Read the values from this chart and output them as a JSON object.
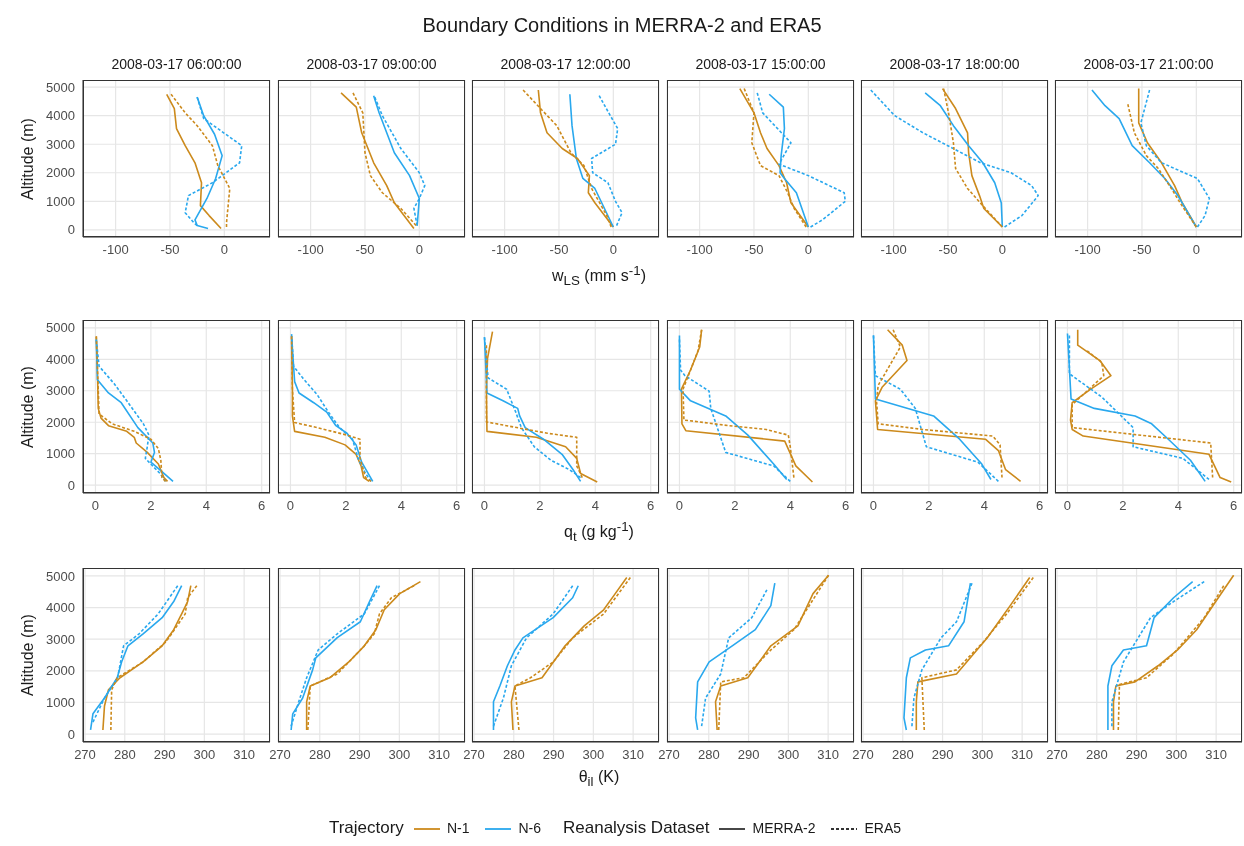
{
  "chart_data": [
    {
      "type": "line",
      "title": "2008-03-17 06:00:00",
      "ylabel": "Altitude (m)",
      "xlim": [
        -130,
        42
      ],
      "xticks": [
        -100,
        -50,
        0
      ],
      "ylim": [
        -250,
        5250
      ],
      "yticks": [
        0,
        1000,
        2000,
        3000,
        4000,
        5000
      ],
      "grid": true,
      "series": [
        {
          "color": "#cc8a1c",
          "line_style": "solid",
          "x": [
            -53,
            -46,
            -44,
            -36,
            -27,
            -21,
            -22,
            -14,
            -3
          ],
          "values": [
            4750,
            4250,
            3550,
            2950,
            2350,
            1650,
            850,
            500,
            50
          ]
        },
        {
          "color": "#cc8a1c",
          "line_style": "dashed",
          "x": [
            -49,
            -36,
            -25,
            -11,
            -6,
            5,
            2,
            2
          ],
          "values": [
            4750,
            4100,
            3650,
            2950,
            2250,
            1450,
            250,
            100
          ]
        },
        {
          "color": "#29a8ee",
          "line_style": "solid",
          "x": [
            -25,
            -19,
            -9,
            -2,
            -8,
            -16,
            -27,
            -25,
            -15
          ],
          "values": [
            4650,
            4000,
            3350,
            2600,
            1800,
            1100,
            350,
            150,
            50
          ]
        },
        {
          "color": "#29a8ee",
          "line_style": "dashed",
          "x": [
            -25,
            -19,
            16,
            14,
            -11,
            -33,
            -36,
            -28,
            -25
          ],
          "values": [
            4650,
            3900,
            2950,
            2350,
            1650,
            1200,
            600,
            250,
            150
          ]
        }
      ]
    },
    {
      "type": "line",
      "title": "2008-03-17 09:00:00",
      "xlim": [
        -130,
        42
      ],
      "xticks": [
        -100,
        -50,
        0
      ],
      "ylim": [
        -250,
        5250
      ],
      "yticks": [
        0,
        1000,
        2000,
        3000,
        4000,
        5000
      ],
      "grid": true,
      "tick_labels": "x",
      "series": [
        {
          "color": "#cc8a1c",
          "line_style": "solid",
          "x": [
            -72,
            -58,
            -53,
            -42,
            -30,
            -23,
            -5
          ],
          "values": [
            4800,
            4300,
            3400,
            2350,
            1550,
            950,
            50
          ]
        },
        {
          "color": "#cc8a1c",
          "line_style": "dashed",
          "x": [
            -61,
            -52,
            -50,
            -45,
            -34,
            -17,
            -3
          ],
          "values": [
            4800,
            4100,
            2700,
            1900,
            1300,
            750,
            150
          ]
        },
        {
          "color": "#29a8ee",
          "line_style": "solid",
          "x": [
            -42,
            -37,
            -23,
            -9,
            0,
            -2
          ],
          "values": [
            4700,
            4100,
            2700,
            1900,
            1100,
            150
          ]
        },
        {
          "color": "#29a8ee",
          "line_style": "dashed",
          "x": [
            -41,
            -34,
            -17,
            0,
            5,
            0,
            -5,
            -2
          ],
          "values": [
            4650,
            4000,
            2850,
            2000,
            1550,
            1100,
            750,
            150
          ]
        }
      ]
    },
    {
      "type": "line",
      "title": "2008-03-17 12:00:00",
      "xlabel": "w$_{LS}$ (mm s$^{-1}$)",
      "xlim": [
        -130,
        42
      ],
      "xticks": [
        -100,
        -50,
        0
      ],
      "ylim": [
        -250,
        5250
      ],
      "yticks": [
        0,
        1000,
        2000,
        3000,
        4000,
        5000
      ],
      "grid": true,
      "tick_labels": "x",
      "series": [
        {
          "color": "#cc8a1c",
          "line_style": "solid",
          "x": [
            -69,
            -67,
            -61,
            -47,
            -33,
            -22,
            -23,
            -17,
            0
          ],
          "values": [
            4900,
            4100,
            3400,
            2850,
            2500,
            1900,
            1300,
            950,
            100
          ]
        },
        {
          "color": "#cc8a1c",
          "line_style": "dashed",
          "x": [
            -83,
            -67,
            -52,
            -39,
            -27,
            -20,
            -6,
            -2
          ],
          "values": [
            4900,
            4250,
            3650,
            2700,
            2250,
            1450,
            500,
            100
          ]
        },
        {
          "color": "#29a8ee",
          "line_style": "solid",
          "x": [
            -40,
            -38,
            -34,
            -28,
            -17,
            0
          ],
          "values": [
            4750,
            3650,
            2500,
            1800,
            1450,
            100
          ]
        },
        {
          "color": "#29a8ee",
          "line_style": "dashed",
          "x": [
            -13,
            -5,
            4,
            2,
            -20,
            -19,
            -5,
            2,
            8,
            3
          ],
          "values": [
            4700,
            4150,
            3550,
            3000,
            2500,
            2000,
            1650,
            1000,
            600,
            150
          ]
        }
      ]
    },
    {
      "type": "line",
      "title": "2008-03-17 15:00:00",
      "xlim": [
        -130,
        42
      ],
      "xticks": [
        -100,
        -50,
        0
      ],
      "ylim": [
        -250,
        5250
      ],
      "yticks": [
        0,
        1000,
        2000,
        3000,
        4000,
        5000
      ],
      "grid": true,
      "tick_labels": "x",
      "series": [
        {
          "color": "#cc8a1c",
          "line_style": "solid",
          "x": [
            -63,
            -50,
            -44,
            -38,
            -27,
            -20,
            -16,
            0
          ],
          "values": [
            4950,
            4100,
            3400,
            2850,
            2250,
            1650,
            950,
            100
          ]
        },
        {
          "color": "#cc8a1c",
          "line_style": "dashed",
          "x": [
            -59,
            -50,
            -52,
            -44,
            -27,
            -19,
            -13,
            -2
          ],
          "values": [
            4950,
            4100,
            3050,
            2250,
            1900,
            1300,
            750,
            100
          ]
        },
        {
          "color": "#29a8ee",
          "line_style": "solid",
          "x": [
            -36,
            -23,
            -22,
            -25,
            -26,
            -22,
            -11,
            0
          ],
          "values": [
            4750,
            4300,
            3550,
            2600,
            2000,
            1800,
            1300,
            100
          ]
        },
        {
          "color": "#29a8ee",
          "line_style": "dashed",
          "x": [
            -47,
            -42,
            -16,
            -27,
            0,
            33,
            34,
            13,
            2
          ],
          "values": [
            4800,
            4100,
            3050,
            2300,
            1900,
            1300,
            1000,
            350,
            100
          ]
        }
      ]
    },
    {
      "type": "line",
      "title": "2008-03-17 18:00:00",
      "xlim": [
        -130,
        42
      ],
      "xticks": [
        -100,
        -50,
        0
      ],
      "ylim": [
        -250,
        5250
      ],
      "yticks": [
        0,
        1000,
        2000,
        3000,
        4000,
        5000
      ],
      "grid": true,
      "tick_labels": "x",
      "series": [
        {
          "color": "#cc8a1c",
          "line_style": "solid",
          "x": [
            -55,
            -43,
            -32,
            -31,
            -28,
            -21,
            -17,
            0
          ],
          "values": [
            4950,
            4250,
            3400,
            2700,
            1900,
            1200,
            750,
            100
          ]
        },
        {
          "color": "#cc8a1c",
          "line_style": "dashed",
          "x": [
            -54,
            -49,
            -45,
            -43,
            -32,
            -18,
            0
          ],
          "values": [
            4950,
            4000,
            3050,
            2150,
            1450,
            850,
            100
          ]
        },
        {
          "color": "#29a8ee",
          "line_style": "solid",
          "x": [
            -71,
            -57,
            -45,
            -31,
            -18,
            -7,
            -1,
            0
          ],
          "values": [
            4800,
            4350,
            3650,
            2950,
            2350,
            1650,
            950,
            100
          ]
        },
        {
          "color": "#29a8ee",
          "line_style": "dashed",
          "x": [
            -121,
            -99,
            -73,
            -20,
            8,
            27,
            33,
            18,
            2
          ],
          "values": [
            4900,
            4000,
            3400,
            2350,
            2000,
            1550,
            1200,
            500,
            100
          ]
        }
      ]
    },
    {
      "type": "line",
      "title": "2008-03-17 21:00:00",
      "xlim": [
        -130,
        42
      ],
      "xticks": [
        -100,
        -50,
        0
      ],
      "ylim": [
        -250,
        5250
      ],
      "yticks": [
        0,
        1000,
        2000,
        3000,
        4000,
        5000
      ],
      "grid": true,
      "tick_labels": "x",
      "series": [
        {
          "color": "#cc8a1c",
          "line_style": "solid",
          "x": [
            -53,
            -53,
            -45,
            -32,
            -20,
            -13,
            0
          ],
          "values": [
            4950,
            3750,
            3050,
            2350,
            1550,
            950,
            100
          ]
        },
        {
          "color": "#cc8a1c",
          "line_style": "dashed",
          "x": [
            -63,
            -57,
            -46,
            -35,
            -23,
            -15,
            0
          ],
          "values": [
            4400,
            3400,
            2600,
            2150,
            1450,
            950,
            100
          ]
        },
        {
          "color": "#29a8ee",
          "line_style": "solid",
          "x": [
            -96,
            -84,
            -71,
            -59,
            -43,
            -29,
            -17,
            0
          ],
          "values": [
            4900,
            4350,
            3900,
            2950,
            2350,
            1800,
            1200,
            100
          ]
        },
        {
          "color": "#29a8ee",
          "line_style": "dashed",
          "x": [
            -43,
            -51,
            -46,
            -32,
            1,
            12,
            8,
            1
          ],
          "values": [
            4900,
            3750,
            2950,
            2350,
            1800,
            1100,
            500,
            100
          ]
        }
      ]
    },
    {
      "type": "line",
      "ylabel": "Altitude (m)",
      "xlim": [
        -0.45,
        6.3
      ],
      "xticks": [
        0,
        2,
        4,
        6
      ],
      "ylim": [
        -250,
        5250
      ],
      "yticks": [
        0,
        1000,
        2000,
        3000,
        4000,
        5000
      ],
      "grid": true,
      "series": [
        {
          "color": "#cc8a1c",
          "line_style": "solid",
          "x": [
            0.03,
            0.07,
            0.1,
            0.2,
            0.47,
            1.13,
            1.4,
            1.47,
            1.87,
            2.27,
            2.47,
            2.6
          ],
          "values": [
            4730,
            3660,
            2440,
            2130,
            1890,
            1710,
            1520,
            1340,
            1040,
            670,
            240,
            120
          ]
        },
        {
          "color": "#cc8a1c",
          "line_style": "dashed",
          "x": [
            0.03,
            0.1,
            0.13,
            0.6,
            1.4,
            2,
            2.27,
            2.36,
            2.4,
            2.53
          ],
          "values": [
            4730,
            3050,
            2260,
            1950,
            1710,
            1460,
            1160,
            790,
            240,
            120
          ]
        },
        {
          "color": "#29a8ee",
          "line_style": "solid",
          "x": [
            0.03,
            0.07,
            0.47,
            0.93,
            1.53,
            2.07,
            2.13,
            2,
            2.4,
            2.8
          ],
          "values": [
            4630,
            3350,
            2930,
            2620,
            1830,
            1340,
            1040,
            730,
            430,
            120
          ]
        },
        {
          "color": "#29a8ee",
          "line_style": "dashed",
          "x": [
            0.03,
            0.13,
            0.67,
            1.13,
            1.73,
            1.93,
            1.87,
            1.8,
            2.33,
            2.53
          ],
          "values": [
            4630,
            3780,
            3230,
            2680,
            1950,
            1590,
            1220,
            850,
            370,
            120
          ]
        }
      ]
    },
    {
      "type": "line",
      "xlim": [
        -0.45,
        6.3
      ],
      "xticks": [
        0,
        2,
        4,
        6
      ],
      "ylim": [
        -250,
        5250
      ],
      "yticks": [
        0,
        1000,
        2000,
        3000,
        4000,
        5000
      ],
      "grid": true,
      "tick_labels": "x",
      "series": [
        {
          "color": "#cc8a1c",
          "line_style": "solid",
          "x": [
            0.04,
            0.07,
            0.07,
            0.15,
            1.24,
            1.97,
            2.37,
            2.55,
            2.64,
            2.84
          ],
          "values": [
            4730,
            3050,
            2200,
            1710,
            1520,
            1280,
            980,
            610,
            240,
            120
          ]
        },
        {
          "color": "#cc8a1c",
          "line_style": "dashed",
          "x": [
            0.04,
            0.07,
            0.15,
            0.97,
            2.04,
            2.51,
            2.51,
            2.71,
            2.91
          ],
          "values": [
            4730,
            3050,
            1990,
            1830,
            1590,
            1460,
            850,
            240,
            120
          ]
        },
        {
          "color": "#29a8ee",
          "line_style": "solid",
          "x": [
            0.04,
            0.15,
            0.31,
            0.84,
            1.31,
            1.64,
            2.04,
            2.37,
            2.57,
            2.97
          ],
          "values": [
            4730,
            3290,
            2930,
            2620,
            2320,
            1890,
            1650,
            1280,
            730,
            120
          ]
        },
        {
          "color": "#29a8ee",
          "line_style": "dashed",
          "x": [
            0.04,
            0.11,
            0.44,
            0.97,
            1.37,
            1.77,
            2.24,
            2.44,
            2.71,
            2.91
          ],
          "values": [
            4800,
            3780,
            3410,
            2870,
            2320,
            1830,
            1460,
            850,
            370,
            120
          ]
        }
      ]
    },
    {
      "type": "line",
      "xlabel": "q$_{t}$ (g kg$^{-1}$)",
      "xlim": [
        -0.45,
        6.3
      ],
      "xticks": [
        0,
        2,
        4,
        6
      ],
      "ylim": [
        -250,
        5250
      ],
      "yticks": [
        0,
        1000,
        2000,
        3000,
        4000,
        5000
      ],
      "grid": true,
      "tick_labels": "x",
      "series": [
        {
          "color": "#cc8a1c",
          "line_style": "solid",
          "x": [
            0.29,
            0.11,
            0.07,
            0.09,
            1.87,
            2.93,
            3.33,
            3.47,
            4.07
          ],
          "values": [
            4880,
            4020,
            3050,
            1710,
            1520,
            1220,
            850,
            370,
            100
          ]
        },
        {
          "color": "#cc8a1c",
          "line_style": "dashed",
          "x": [
            0.07,
            0.07,
            0.8,
            2.27,
            3.33,
            3.33,
            3.53
          ],
          "values": [
            4450,
            2010,
            1890,
            1650,
            1520,
            610,
            240
          ]
        },
        {
          "color": "#29a8ee",
          "line_style": "solid",
          "x": [
            0,
            0.09,
            0.67,
            1.2,
            1.27,
            1.47,
            2.13,
            2.8,
            3.2,
            3.47
          ],
          "values": [
            4700,
            2930,
            2680,
            2440,
            2200,
            1830,
            1460,
            980,
            490,
            120
          ]
        },
        {
          "color": "#29a8ee",
          "line_style": "dashed",
          "x": [
            0,
            0.13,
            0.8,
            1.13,
            1.33,
            1.8,
            2.4,
            3.07,
            3.47
          ],
          "values": [
            4700,
            3410,
            3050,
            2320,
            1830,
            1220,
            790,
            490,
            240
          ]
        }
      ]
    },
    {
      "type": "line",
      "xlim": [
        -0.45,
        6.3
      ],
      "xticks": [
        0,
        2,
        4,
        6
      ],
      "ylim": [
        -250,
        5250
      ],
      "yticks": [
        0,
        1000,
        2000,
        3000,
        4000,
        5000
      ],
      "grid": true,
      "tick_labels": "x",
      "series": [
        {
          "color": "#cc8a1c",
          "line_style": "solid",
          "x": [
            0.8,
            0.73,
            0.4,
            0.07,
            0.09,
            0.23,
            3.8,
            4.2,
            4.8
          ],
          "values": [
            4940,
            4390,
            3660,
            3050,
            1950,
            1730,
            1400,
            610,
            100
          ]
        },
        {
          "color": "#cc8a1c",
          "line_style": "dashed",
          "x": [
            0.8,
            0.67,
            0.13,
            0.16,
            1.8,
            3.13,
            3.93,
            4,
            4.13
          ],
          "values": [
            4940,
            4270,
            3050,
            2070,
            1890,
            1770,
            1590,
            1220,
            240
          ]
        },
        {
          "color": "#29a8ee",
          "line_style": "solid",
          "x": [
            0,
            0,
            0.4,
            1.67,
            2.47,
            3.4,
            3.87
          ],
          "values": [
            4760,
            3050,
            2680,
            2200,
            1590,
            670,
            180
          ]
        },
        {
          "color": "#29a8ee",
          "line_style": "dashed",
          "x": [
            0,
            0.04,
            0.2,
            1.07,
            1.13,
            1.67,
            3.4,
            4
          ],
          "values": [
            4630,
            3660,
            3480,
            2990,
            2440,
            1040,
            610,
            120
          ]
        }
      ]
    },
    {
      "type": "line",
      "xlim": [
        -0.45,
        6.3
      ],
      "xticks": [
        0,
        2,
        4,
        6
      ],
      "ylim": [
        -250,
        5250
      ],
      "yticks": [
        0,
        1000,
        2000,
        3000,
        4000,
        5000
      ],
      "grid": true,
      "tick_labels": "x",
      "series": [
        {
          "color": "#cc8a1c",
          "line_style": "solid",
          "x": [
            0.51,
            1.04,
            1.21,
            0.31,
            0.07,
            0.15,
            4.04,
            4.51,
            4.77,
            5.31
          ],
          "values": [
            4940,
            4450,
            3960,
            3110,
            2680,
            1770,
            1460,
            1100,
            490,
            120
          ]
        },
        {
          "color": "#cc8a1c",
          "line_style": "dashed",
          "x": [
            0.71,
            0.97,
            0.17,
            0.11,
            0.17,
            1.77,
            4.31,
            4.57,
            4.64
          ],
          "values": [
            4940,
            4390,
            3170,
            2680,
            1950,
            1770,
            1560,
            1280,
            240
          ]
        },
        {
          "color": "#29a8ee",
          "line_style": "solid",
          "x": [
            0,
            0.07,
            2.17,
            3.11,
            3.91,
            4.24
          ],
          "values": [
            4760,
            2740,
            2200,
            1460,
            670,
            180
          ]
        },
        {
          "color": "#29a8ee",
          "line_style": "dashed",
          "x": [
            0,
            0.07,
            0.97,
            1.51,
            1.91,
            3.77,
            4.51
          ],
          "values": [
            4760,
            3480,
            3050,
            2440,
            1220,
            730,
            120
          ]
        }
      ]
    },
    {
      "type": "line",
      "xlim": [
        -0.45,
        6.3
      ],
      "xticks": [
        0,
        2,
        4,
        6
      ],
      "ylim": [
        -250,
        5250
      ],
      "yticks": [
        0,
        1000,
        2000,
        3000,
        4000,
        5000
      ],
      "grid": true,
      "tick_labels": "x",
      "series": [
        {
          "color": "#cc8a1c",
          "line_style": "solid",
          "x": [
            0.37,
            0.37,
            1.17,
            1.57,
            0.84,
            0.17,
            0.11,
            0.17,
            0.57,
            5.11,
            5.51,
            5.91
          ],
          "values": [
            4940,
            4450,
            3960,
            3480,
            3050,
            2620,
            2070,
            1770,
            1560,
            980,
            240,
            100
          ]
        },
        {
          "color": "#cc8a1c",
          "line_style": "dashed",
          "x": [
            0.71,
            1.24,
            1.31,
            0.17,
            0.17,
            5.17,
            5.24
          ],
          "values": [
            4270,
            3900,
            3480,
            2560,
            1830,
            1340,
            240
          ]
        },
        {
          "color": "#29a8ee",
          "line_style": "solid",
          "x": [
            0,
            0.13,
            0.97,
            2.44,
            3.04,
            3.64,
            4.44,
            4.97
          ],
          "values": [
            4820,
            2740,
            2440,
            2200,
            1950,
            1460,
            790,
            120
          ]
        },
        {
          "color": "#29a8ee",
          "line_style": "dashed",
          "x": [
            0.07,
            0.07,
            1.24,
            2.37,
            2.37,
            4.17,
            5.11
          ],
          "values": [
            4760,
            3540,
            2800,
            1830,
            1220,
            850,
            180
          ]
        }
      ]
    },
    {
      "type": "line",
      "ylabel": "Altitude (m)",
      "xlim": [
        269.5,
        316.5
      ],
      "xticks": [
        270,
        280,
        290,
        300,
        310
      ],
      "ylim": [
        -250,
        5250
      ],
      "yticks": [
        0,
        1000,
        2000,
        3000,
        4000,
        5000
      ],
      "grid": true,
      "series": [
        {
          "color": "#cc8a1c",
          "line_style": "solid",
          "x": [
            296.6,
            295.8,
            294.3,
            292.3,
            289.4,
            284.6,
            278.8,
            275.9,
            274.9,
            274.5
          ],
          "values": [
            4690,
            4190,
            3800,
            3300,
            2790,
            2280,
            1780,
            1400,
            890,
            130
          ]
        },
        {
          "color": "#cc8a1c",
          "line_style": "dashed",
          "x": [
            298.1,
            295.8,
            295.2,
            290.4,
            284.6,
            278.1,
            276.7,
            276.5
          ],
          "values": [
            4690,
            4310,
            3800,
            2920,
            2280,
            1780,
            1400,
            130
          ]
        },
        {
          "color": "#29a8ee",
          "line_style": "solid",
          "x": [
            294.3,
            292.3,
            289.4,
            284.6,
            280.8,
            279.2,
            278.1,
            274.9,
            272,
            271.4
          ],
          "values": [
            4690,
            4190,
            3680,
            3170,
            2790,
            2280,
            1780,
            1140,
            640,
            130
          ]
        },
        {
          "color": "#29a8ee",
          "line_style": "dashed",
          "x": [
            293.3,
            288.4,
            283.6,
            279.7,
            278.2,
            274.9,
            272
          ],
          "values": [
            4690,
            3800,
            3170,
            2790,
            1780,
            1140,
            380
          ]
        }
      ]
    },
    {
      "type": "line",
      "xlim": [
        269.5,
        316.5
      ],
      "xticks": [
        270,
        280,
        290,
        300,
        310
      ],
      "ylim": [
        -250,
        5250
      ],
      "yticks": [
        0,
        1000,
        2000,
        3000,
        4000,
        5000
      ],
      "grid": true,
      "tick_labels": "x",
      "series": [
        {
          "color": "#cc8a1c",
          "line_style": "solid",
          "x": [
            305.3,
            300.1,
            296.2,
            294.1,
            291.2,
            287.3,
            282.5,
            277.6,
            276.7,
            276.7
          ],
          "values": [
            4820,
            4440,
            3930,
            3300,
            2790,
            2280,
            1780,
            1520,
            1020,
            130
          ]
        },
        {
          "color": "#cc8a1c",
          "line_style": "dashed",
          "x": [
            303.7,
            298,
            295,
            293.7,
            291.2,
            284.4,
            277.6,
            277
          ],
          "values": [
            4690,
            4310,
            3800,
            3170,
            2790,
            1900,
            1520,
            130
          ]
        },
        {
          "color": "#29a8ee",
          "line_style": "solid",
          "x": [
            294.4,
            292.5,
            290.2,
            284.4,
            279,
            278.2,
            275.7,
            273.2,
            272.8
          ],
          "values": [
            4690,
            4190,
            3550,
            3050,
            2410,
            2030,
            1140,
            640,
            130
          ]
        },
        {
          "color": "#29a8ee",
          "line_style": "dashed",
          "x": [
            295,
            291.2,
            284.4,
            279.6,
            276.7,
            274.7,
            272.8
          ],
          "values": [
            4690,
            3800,
            3170,
            2660,
            1780,
            1020,
            250
          ]
        }
      ]
    },
    {
      "type": "line",
      "xlabel": "θ$_{il}$ (K)",
      "xlim": [
        269.5,
        316.5
      ],
      "xticks": [
        270,
        280,
        290,
        300,
        310
      ],
      "ylim": [
        -250,
        5250
      ],
      "yticks": [
        0,
        1000,
        2000,
        3000,
        4000,
        5000
      ],
      "grid": true,
      "tick_labels": "x",
      "series": [
        {
          "color": "#cc8a1c",
          "line_style": "solid",
          "x": [
            308.4,
            305.5,
            302.6,
            297.7,
            292.9,
            287.1,
            280.3,
            279.4,
            279.8
          ],
          "values": [
            4950,
            4440,
            3930,
            3420,
            2790,
            1780,
            1520,
            1020,
            130
          ]
        },
        {
          "color": "#cc8a1c",
          "line_style": "dashed",
          "x": [
            309.3,
            302.6,
            294.8,
            289.9,
            284.2,
            280.3,
            281.3
          ],
          "values": [
            4950,
            3800,
            3040,
            2280,
            1780,
            1520,
            130
          ]
        },
        {
          "color": "#29a8ee",
          "line_style": "solid",
          "x": [
            296.2,
            294.8,
            289.9,
            282.3,
            280.3,
            278.4,
            276.5,
            274.9,
            274.9
          ],
          "values": [
            4690,
            4310,
            3680,
            3040,
            2660,
            2160,
            1520,
            1020,
            130
          ]
        },
        {
          "color": "#29a8ee",
          "line_style": "dashed",
          "x": [
            294.8,
            289.9,
            283.2,
            279.4,
            277.4,
            274.9
          ],
          "values": [
            4690,
            3800,
            3040,
            2160,
            1140,
            250
          ]
        }
      ]
    },
    {
      "type": "line",
      "xlim": [
        269.5,
        316.5
      ],
      "xticks": [
        270,
        280,
        290,
        300,
        310
      ],
      "ylim": [
        -250,
        5250
      ],
      "yticks": [
        0,
        1000,
        2000,
        3000,
        4000,
        5000
      ],
      "grid": true,
      "tick_labels": "x",
      "series": [
        {
          "color": "#cc8a1c",
          "line_style": "solid",
          "x": [
            310.1,
            306.2,
            302.4,
            295.6,
            289.8,
            283,
            281.7,
            282.1
          ],
          "values": [
            5020,
            4440,
            3420,
            2790,
            1780,
            1520,
            1020,
            130
          ]
        },
        {
          "color": "#cc8a1c",
          "line_style": "dashed",
          "x": [
            310.1,
            301.4,
            295.6,
            288.8,
            283,
            282.5
          ],
          "values": [
            5020,
            3300,
            2660,
            1780,
            1650,
            130
          ]
        },
        {
          "color": "#29a8ee",
          "line_style": "solid",
          "x": [
            296.6,
            295.6,
            291.7,
            285.9,
            280.1,
            277.2,
            276.7,
            277.2
          ],
          "values": [
            4770,
            4060,
            3300,
            2790,
            2280,
            1650,
            510,
            130
          ]
        },
        {
          "color": "#29a8ee",
          "line_style": "dashed",
          "x": [
            294.6,
            290.8,
            285,
            283,
            279.2,
            278.2
          ],
          "values": [
            4560,
            3680,
            3040,
            1900,
            1140,
            250
          ]
        }
      ]
    },
    {
      "type": "line",
      "xlim": [
        269.5,
        316.5
      ],
      "xticks": [
        270,
        280,
        290,
        300,
        310
      ],
      "ylim": [
        -250,
        5250
      ],
      "yticks": [
        0,
        1000,
        2000,
        3000,
        4000,
        5000
      ],
      "grid": true,
      "tick_labels": "x",
      "series": [
        {
          "color": "#cc8a1c",
          "line_style": "solid",
          "x": [
            311.9,
            307,
            301.2,
            293.5,
            283.8,
            283.4,
            283.4
          ],
          "values": [
            4950,
            4060,
            3040,
            1900,
            1650,
            1020,
            130
          ]
        },
        {
          "color": "#cc8a1c",
          "line_style": "dashed",
          "x": [
            312.8,
            306.1,
            300.3,
            293.5,
            284.8,
            285.4
          ],
          "values": [
            4950,
            3800,
            2920,
            2030,
            1780,
            130
          ]
        },
        {
          "color": "#29a8ee",
          "line_style": "solid",
          "x": [
            297,
            295.4,
            291.5,
            285.7,
            281.9,
            280.9,
            280.3,
            280.9
          ],
          "values": [
            4770,
            3550,
            2790,
            2660,
            2410,
            1780,
            510,
            130
          ]
        },
        {
          "color": "#29a8ee",
          "line_style": "dashed",
          "x": [
            297.4,
            293.5,
            289.6,
            284.8,
            282.8,
            282.3
          ],
          "values": [
            4770,
            3550,
            3040,
            2030,
            1140,
            250
          ]
        }
      ]
    },
    {
      "type": "line",
      "xlim": [
        269.5,
        316.5
      ],
      "xticks": [
        270,
        280,
        290,
        300,
        310
      ],
      "ylim": [
        -250,
        5250
      ],
      "yticks": [
        0,
        1000,
        2000,
        3000,
        4000,
        5000
      ],
      "grid": true,
      "tick_labels": "x",
      "series": [
        {
          "color": "#cc8a1c",
          "line_style": "solid",
          "x": [
            314.4,
            309.9,
            305.1,
            300.3,
            295.4,
            289.6,
            284.8,
            284.2,
            284.2
          ],
          "values": [
            5020,
            4190,
            3300,
            2660,
            2160,
            1650,
            1520,
            1020,
            130
          ]
        },
        {
          "color": "#cc8a1c",
          "line_style": "dashed",
          "x": [
            311.9,
            307,
            299.3,
            292.5,
            285.7,
            285.4
          ],
          "values": [
            4690,
            3680,
            2540,
            1780,
            1570,
            130
          ]
        },
        {
          "color": "#29a8ee",
          "line_style": "solid",
          "x": [
            304.1,
            299.3,
            294.4,
            292.5,
            286.7,
            283.8,
            282.8,
            282.8
          ],
          "values": [
            4820,
            4310,
            3680,
            2790,
            2660,
            2160,
            1520,
            130
          ]
        },
        {
          "color": "#29a8ee",
          "line_style": "dashed",
          "x": [
            307,
            299.3,
            293.5,
            286.7,
            283.8,
            283.8
          ],
          "values": [
            4820,
            4190,
            3680,
            2280,
            1020,
            250
          ]
        }
      ]
    },
    {
      "type": "other",
      "title": "Boundary Conditions in MERRA-2 and ERA5",
      "legend": "bottom",
      "legend_title": "Trajectory",
      "annotations": [
        "Reanalysis Dataset"
      ],
      "series": [
        {
          "name": "N-1",
          "color": "#cc8a1c"
        },
        {
          "name": "N-6",
          "color": "#29a8ee"
        },
        {
          "name": "MERRA-2",
          "color": "#333333",
          "line_style": "solid"
        },
        {
          "name": "ERA5",
          "color": "#333333",
          "line_style": "dashed"
        }
      ]
    }
  ]
}
